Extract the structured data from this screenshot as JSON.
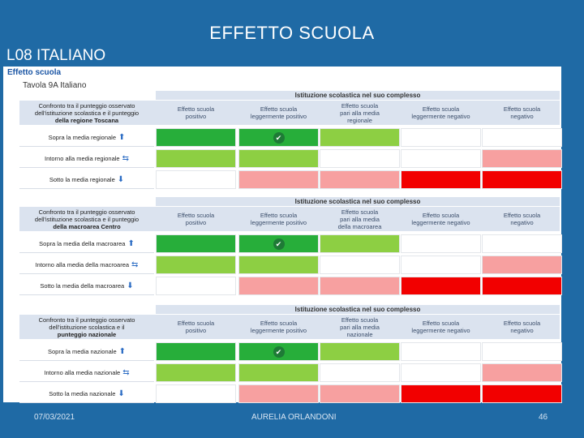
{
  "slide": {
    "title": "EFFETTO SCUOLA",
    "subtitle": "L08 ITALIANO",
    "panel_label": "Effetto scuola",
    "table_label": "Tavola 9A Italiano"
  },
  "colors": {
    "green_dark": "#27ae3a",
    "green_light": "#8dcf43",
    "pink": "#f7a0a0",
    "red": "#f20000",
    "white": "#ffffff",
    "header_bg": "#dbe3ef"
  },
  "column_headers": [
    [
      "Effetto scuola",
      "positivo"
    ],
    [
      "Effetto scuola",
      "leggermente positivo"
    ],
    [
      "Effetto scuola",
      "pari alla media"
    ],
    [
      "Effetto scuola",
      "leggermente negativo"
    ],
    [
      "Effetto scuola",
      "negativo"
    ]
  ],
  "blocks": [
    {
      "head": "Istituzione scolastica nel suo complesso",
      "desc": [
        "Confronto tra il punteggio osservato",
        "dell'istituzione scolastica e il punteggio",
        "della regione Toscana"
      ],
      "col3_extra": "regionale",
      "rows": [
        {
          "label": "Sopra la media regionale",
          "arrow": "up",
          "cells": [
            "green_dark",
            "green_dark",
            "green_light",
            "white",
            "white"
          ],
          "check": 1
        },
        {
          "label": "Intorno alla media regionale",
          "arrow": "both",
          "cells": [
            "green_light",
            "green_light",
            "white",
            "white",
            "pink"
          ],
          "check": -1
        },
        {
          "label": "Sotto la media regionale",
          "arrow": "down",
          "cells": [
            "white",
            "pink",
            "pink",
            "red",
            "red"
          ],
          "check": -1
        }
      ]
    },
    {
      "head": "Istituzione scolastica nel suo complesso",
      "desc": [
        "Confronto tra il punteggio osservato",
        "dell'istituzione scolastica e il punteggio",
        "della macroarea Centro"
      ],
      "col3_extra": "della macroarea",
      "rows": [
        {
          "label": "Sopra la media della macroarea",
          "arrow": "up",
          "cells": [
            "green_dark",
            "green_dark",
            "green_light",
            "white",
            "white"
          ],
          "check": 1
        },
        {
          "label": "Intorno alla media della macroarea",
          "arrow": "both",
          "cells": [
            "green_light",
            "green_light",
            "white",
            "white",
            "pink"
          ],
          "check": -1
        },
        {
          "label": "Sotto la media della macroarea",
          "arrow": "down",
          "cells": [
            "white",
            "pink",
            "pink",
            "red",
            "red"
          ],
          "check": -1
        }
      ]
    },
    {
      "head": "Istituzione scolastica nel suo complesso",
      "desc": [
        "Confronto tra il punteggio osservato",
        "dell'istituzione scolastica e il",
        "punteggio nazionale"
      ],
      "col3_extra": "nazionale",
      "rows": [
        {
          "label": "Sopra la media nazionale",
          "arrow": "up",
          "cells": [
            "green_dark",
            "green_dark",
            "green_light",
            "white",
            "white"
          ],
          "check": 1
        },
        {
          "label": "Intorno alla media nazionale",
          "arrow": "both",
          "cells": [
            "green_light",
            "green_light",
            "white",
            "white",
            "pink"
          ],
          "check": -1
        },
        {
          "label": "Sotto la media nazionale",
          "arrow": "down",
          "cells": [
            "white",
            "pink",
            "pink",
            "red",
            "red"
          ],
          "check": -1
        }
      ]
    }
  ],
  "footer": {
    "date": "07/03/2021",
    "author": "AURELIA ORLANDONI",
    "page": "46"
  }
}
